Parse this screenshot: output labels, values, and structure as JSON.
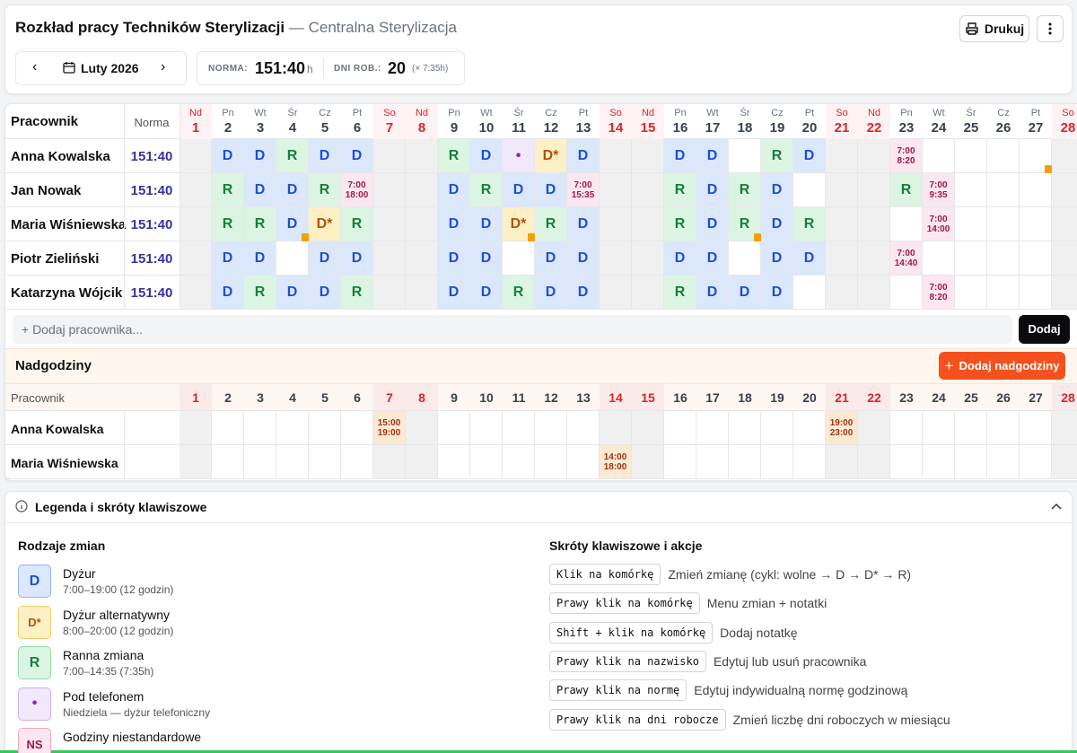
{
  "header": {
    "title": "Rozkład pracy Techników Sterylizacji",
    "subtitle": "— Centralna Sterylizacja",
    "print_button": "Drukuj",
    "month": "Luty 2026",
    "norm_label": "NORMA:",
    "norm_value": "151:40",
    "norm_unit": "h",
    "workdays_label": "DNI ROB.:",
    "workdays_value": 20,
    "workdays_note": "(× 7:35h)"
  },
  "schedule": {
    "employee_header": "Pracownik",
    "norm_header": "Norma",
    "days": [
      {
        "dow": "Nd",
        "day": 1,
        "weekend": true
      },
      {
        "dow": "Pn",
        "day": 2
      },
      {
        "dow": "Wt",
        "day": 3
      },
      {
        "dow": "Śr",
        "day": 4
      },
      {
        "dow": "Cz",
        "day": 5
      },
      {
        "dow": "Pt",
        "day": 6
      },
      {
        "dow": "So",
        "day": 7,
        "weekend": true
      },
      {
        "dow": "Nd",
        "day": 8,
        "weekend": true
      },
      {
        "dow": "Pn",
        "day": 9
      },
      {
        "dow": "Wt",
        "day": 10
      },
      {
        "dow": "Śr",
        "day": 11
      },
      {
        "dow": "Cz",
        "day": 12
      },
      {
        "dow": "Pt",
        "day": 13
      },
      {
        "dow": "So",
        "day": 14,
        "weekend": true
      },
      {
        "dow": "Nd",
        "day": 15,
        "weekend": true
      },
      {
        "dow": "Pn",
        "day": 16
      },
      {
        "dow": "Wt",
        "day": 17
      },
      {
        "dow": "Śr",
        "day": 18
      },
      {
        "dow": "Cz",
        "day": 19
      },
      {
        "dow": "Pt",
        "day": 20
      },
      {
        "dow": "So",
        "day": 21,
        "weekend": true
      },
      {
        "dow": "Nd",
        "day": 22,
        "weekend": true
      },
      {
        "dow": "Pn",
        "day": 23
      },
      {
        "dow": "Wt",
        "day": 24
      },
      {
        "dow": "Śr",
        "day": 25
      },
      {
        "dow": "Cz",
        "day": 26
      },
      {
        "dow": "Pt",
        "day": 27
      },
      {
        "dow": "So",
        "day": 28,
        "weekend": true
      }
    ],
    "rows": [
      {
        "name": "Anna Kowalska",
        "norm": "151:40",
        "cells": [
          null,
          "D",
          "D",
          "R",
          "D",
          "D",
          null,
          null,
          "R",
          "D",
          "•",
          "D*",
          "D",
          null,
          null,
          "D",
          "D",
          null,
          "R",
          "D",
          null,
          null,
          "7:00\n8:20",
          null,
          null,
          null,
          null,
          null
        ],
        "notes": [
          27
        ]
      },
      {
        "name": "Jan Nowak",
        "norm": "151:40",
        "cells": [
          null,
          "R",
          "D",
          "D",
          "R",
          "7:00\n18:00",
          null,
          null,
          "D",
          "R",
          "D",
          "D",
          "7:00\n15:35",
          null,
          null,
          "R",
          "D",
          "R",
          "D",
          null,
          null,
          null,
          "R",
          "7:00\n9:35",
          null,
          null,
          null,
          null
        ],
        "notes": []
      },
      {
        "name": "Maria Wiśniewska",
        "norm": "151:40",
        "cells": [
          null,
          "R",
          "R",
          "D",
          "D*",
          "R",
          null,
          null,
          "D",
          "D",
          "D*",
          "R",
          "D",
          null,
          null,
          "R",
          "D",
          "R",
          "D",
          "R",
          null,
          null,
          null,
          "7:00\n14:00",
          null,
          null,
          null,
          null
        ],
        "notes": [
          4,
          11,
          18
        ]
      },
      {
        "name": "Piotr Zieliński",
        "norm": "151:40",
        "cells": [
          null,
          "D",
          "D",
          null,
          "D",
          "D",
          null,
          null,
          "D",
          "D",
          null,
          "D",
          "D",
          null,
          null,
          "D",
          "D",
          null,
          "D",
          "D",
          null,
          null,
          "7:00\n14:40",
          null,
          null,
          null,
          null,
          null
        ],
        "notes": []
      },
      {
        "name": "Katarzyna Wójcik",
        "norm": "151:40",
        "cells": [
          null,
          "D",
          "R",
          "D",
          "D",
          "R",
          null,
          null,
          "D",
          "D",
          "R",
          "D",
          "D",
          null,
          null,
          "R",
          "D",
          "D",
          "D",
          null,
          null,
          null,
          null,
          "7:00\n8:20",
          null,
          null,
          null,
          null
        ],
        "notes": []
      }
    ],
    "add_placeholder": "+ Dodaj pracownika...",
    "add_button": "Dodaj"
  },
  "overtime": {
    "title": "Nadgodziny",
    "add_button": "Dodaj nadgodziny",
    "employee_header": "Pracownik",
    "cell_bg": "#fde9d2",
    "cell_fg": "#9a3412",
    "rows": [
      {
        "name": "Anna Kowalska",
        "cells": [
          null,
          null,
          null,
          null,
          null,
          null,
          "15:00\n19:00",
          null,
          null,
          null,
          null,
          null,
          null,
          null,
          null,
          null,
          null,
          null,
          null,
          null,
          "19:00\n23:00",
          null,
          null,
          null,
          null,
          null,
          null,
          null
        ]
      },
      {
        "name": "Maria Wiśniewska",
        "cells": [
          null,
          null,
          null,
          null,
          null,
          null,
          null,
          null,
          null,
          null,
          null,
          null,
          null,
          "14:00\n18:00",
          null,
          null,
          null,
          null,
          null,
          null,
          null,
          null,
          null,
          null,
          null,
          null,
          null,
          null
        ]
      }
    ]
  },
  "legend": {
    "title": "Legenda i skróty klawiszowe",
    "types_title": "Rodzaje zmian",
    "shortcuts_title": "Skróty klawiszowe i akcje",
    "items": [
      {
        "code": "D",
        "name": "Dyżur",
        "desc": "7:00–19:00 (12 godzin)",
        "bg": "#dbe8fb",
        "fg": "#1d4ed8",
        "border": "#93b4ee"
      },
      {
        "code": "D*",
        "name": "Dyżur alternatywny",
        "desc": "8:00–20:00 (12 godzin)",
        "bg": "#fdf0c4",
        "fg": "#b45309",
        "border": "#f0cf6a"
      },
      {
        "code": "R",
        "name": "Ranna zmiana",
        "desc": "7:00–14:35 (7:35h)",
        "bg": "#dcf5e3",
        "fg": "#15803d",
        "border": "#93dca8"
      },
      {
        "code": "•",
        "name": "Pod telefonem",
        "desc": "Niedziela — dyżur telefoniczny",
        "bg": "#f1e8fb",
        "fg": "#7e22ce",
        "border": "#cdb1ee"
      },
      {
        "code": "NS",
        "name": "Godziny niestandardowe",
        "bg": "#fce7f0",
        "fg": "#9d174d",
        "border": "#f2a8c6"
      }
    ],
    "shortcuts": [
      {
        "key": "Klik na komórkę",
        "desc": "Zmień zmianę (cykl: wolne → D → D* → R)"
      },
      {
        "key": "Prawy klik na komórkę",
        "desc": "Menu zmian + notatki"
      },
      {
        "key": "Shift + klik na komórkę",
        "desc": "Dodaj notatkę"
      },
      {
        "key": "Prawy klik na nazwisko",
        "desc": "Edytuj lub usuń pracownika"
      },
      {
        "key": "Prawy klik na normę",
        "desc": "Edytuj indywidualną normę godzinową"
      },
      {
        "key": "Prawy klik na dni robocze",
        "desc": "Zmień liczbę dni roboczych w miesiącu"
      }
    ]
  }
}
